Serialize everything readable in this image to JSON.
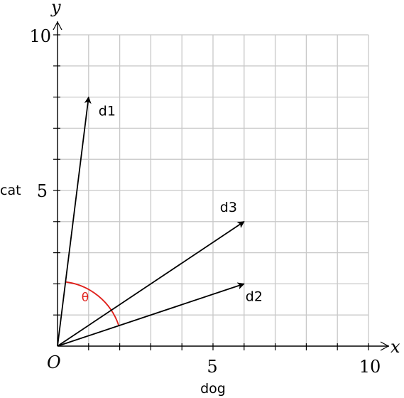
{
  "chart_data": {
    "type": "vector-diagram",
    "xlabel": "dog",
    "ylabel": "cat",
    "axis_x_symbol": "x",
    "axis_y_symbol": "y",
    "origin_label": "O",
    "xlim": [
      0,
      10
    ],
    "ylim": [
      0,
      10
    ],
    "grid": true,
    "x_tick_labels": [
      "5",
      "10"
    ],
    "y_tick_labels": [
      "5",
      "10"
    ],
    "vectors": [
      {
        "name": "d1",
        "x": 1,
        "y": 8
      },
      {
        "name": "d2",
        "x": 6,
        "y": 2
      },
      {
        "name": "d3",
        "x": 6,
        "y": 4
      }
    ],
    "angle": {
      "label": "θ",
      "between": [
        "d1",
        "d2"
      ],
      "color": "#e0201b"
    }
  }
}
